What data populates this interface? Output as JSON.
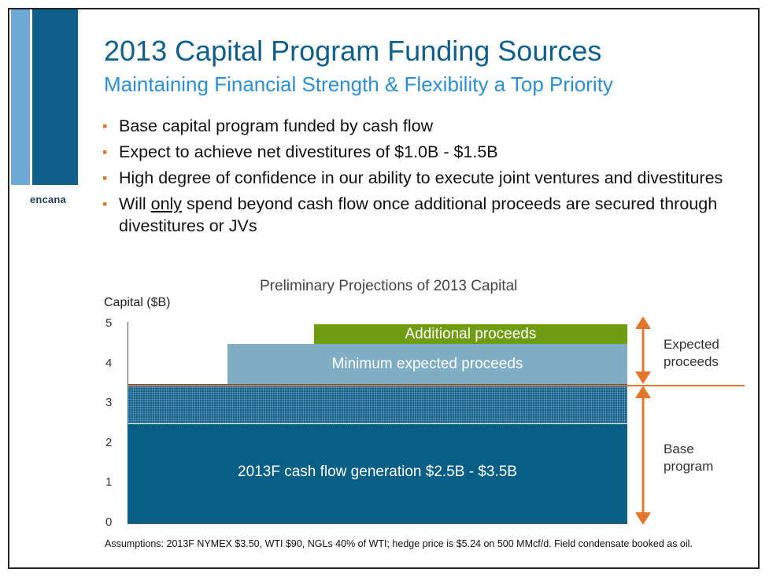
{
  "logo": "encana",
  "title": "2013 Capital Program Funding Sources",
  "subtitle": "Maintaining Financial Strength & Flexibility a Top Priority",
  "bullets": {
    "b1": "Base capital program funded by cash flow",
    "b2": "Expect to achieve net divestitures of $1.0B - $1.5B",
    "b3": "High degree of confidence in our ability to execute joint ventures and divestitures",
    "b4_pre": "Will ",
    "b4_em": "only",
    "b4_post": " spend beyond cash flow once additional proceeds are secured through divestitures or JVs"
  },
  "colors": {
    "accent_orange": "#e4762b",
    "brand_blue": "#0f5f8a",
    "green": "#6f9c10",
    "light_blue": "#7fadc4",
    "dark_blue": "#085f85"
  },
  "chart_data": {
    "type": "bar",
    "title": "Preliminary Projections of 2013 Capital",
    "ylabel": "Capital ($B)",
    "ylim": [
      0,
      5
    ],
    "yticks": [
      "0",
      "1",
      "2",
      "3",
      "4",
      "5"
    ],
    "grid": false,
    "segments": [
      {
        "name": "2013F cash flow generation $2.5B - $3.5B",
        "bottom": 0,
        "top": 2.5,
        "x_start": 0,
        "x_end": 1,
        "style": "solid"
      },
      {
        "name": "",
        "bottom": 2.5,
        "top": 3.5,
        "x_start": 0,
        "x_end": 1,
        "style": "dotted"
      },
      {
        "name": "Minimum expected proceeds",
        "bottom": 3.5,
        "top": 4.5,
        "x_start": 0.2,
        "x_end": 1,
        "style": "solid"
      },
      {
        "name": "Additional proceeds",
        "bottom": 4.5,
        "top": 5.0,
        "x_start": 0.373,
        "x_end": 1,
        "style": "solid"
      }
    ],
    "reference_line": 3.5,
    "annotations": [
      {
        "text": "Expected proceeds",
        "from": 3.5,
        "to": 5.0
      },
      {
        "text": "Base program",
        "from": 0,
        "to": 3.5
      }
    ]
  },
  "assumptions": "Assumptions:  2013F NYMEX $3.50, WTI $90, NGLs 40% of WTI; hedge price is $5.24 on 500 MMcf/d. Field condensate booked as oil."
}
